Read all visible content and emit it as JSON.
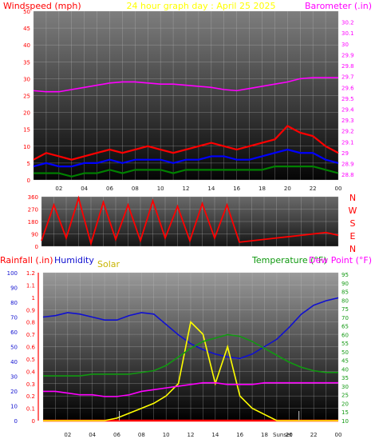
{
  "colors": {
    "wind": "#ff0000",
    "gust": "#ff0000",
    "windAvg": "#0000ff",
    "windLow": "#008000",
    "baro": "#ff00ff",
    "title": "#ffff00",
    "rain": "#ff0000",
    "humidity": "#1010d0",
    "solar": "#ffff00",
    "temp": "#119911",
    "dew": "#ff00ff",
    "dir": "#ff0000"
  },
  "header": {
    "windspeed": "Windspeed (mph)",
    "title": "24 hour graph day : April 25 2025",
    "barometer": "Barometer (.in)",
    "rainfall": "Rainfall (.in)",
    "humidity": "Humidity",
    "solar": "Solar",
    "temperature": "Temperature (°F)",
    "dewpoint": "Dew Point (°F)",
    "sunset": "Sunset"
  },
  "chart_data": [
    {
      "type": "line",
      "name": "wind",
      "x_ticks": [
        "02",
        "04",
        "06",
        "08",
        "10",
        "12",
        "14",
        "16",
        "18",
        "20",
        "22",
        "00"
      ],
      "y_left_ticks": [
        "0",
        "5",
        "10",
        "15",
        "20",
        "25",
        "30",
        "35",
        "40",
        "45",
        "50"
      ],
      "ylim_left": [
        0,
        50
      ],
      "y_right_ticks": [
        "28.8",
        "28.9",
        "29",
        "29.1",
        "29.2",
        "29.3",
        "29.4",
        "29.5",
        "29.6",
        "29.7",
        "29.8",
        "29.9",
        "30",
        "30.1",
        "30.2"
      ],
      "ylim_right": [
        28.75,
        30.3
      ],
      "x": [
        0,
        1,
        2,
        3,
        4,
        5,
        6,
        7,
        8,
        9,
        10,
        11,
        12,
        13,
        14,
        15,
        16,
        17,
        18,
        19,
        20,
        21,
        22,
        23,
        24
      ],
      "series": [
        {
          "id": "gust",
          "values": [
            6,
            8,
            7,
            6,
            7,
            8,
            9,
            8,
            9,
            10,
            9,
            8,
            9,
            10,
            11,
            10,
            9,
            10,
            11,
            12,
            16,
            14,
            13,
            10,
            8
          ]
        },
        {
          "id": "avg",
          "values": [
            4,
            5,
            4,
            4,
            5,
            5,
            6,
            5,
            6,
            6,
            6,
            5,
            6,
            6,
            7,
            7,
            6,
            6,
            7,
            8,
            9,
            8,
            8,
            6,
            5
          ]
        },
        {
          "id": "low",
          "values": [
            2,
            2,
            2,
            1,
            2,
            2,
            3,
            2,
            3,
            3,
            3,
            2,
            3,
            3,
            3,
            3,
            3,
            3,
            3,
            4,
            4,
            4,
            4,
            3,
            2
          ]
        },
        {
          "id": "baro",
          "values": [
            29.57,
            29.56,
            29.56,
            29.58,
            29.6,
            29.62,
            29.64,
            29.65,
            29.65,
            29.64,
            29.63,
            29.63,
            29.62,
            29.61,
            29.6,
            29.58,
            29.57,
            29.59,
            29.61,
            29.63,
            29.65,
            29.68,
            29.69,
            29.69,
            29.69
          ]
        }
      ]
    },
    {
      "type": "line",
      "name": "direction",
      "y_ticks": [
        "0",
        "90",
        "180",
        "270",
        "360"
      ],
      "ylim": [
        0,
        360
      ],
      "compass": [
        "N",
        "W",
        "S",
        "E",
        "N"
      ],
      "x": [
        0,
        1,
        2,
        3,
        4,
        5,
        6,
        7,
        8,
        9,
        10,
        11,
        12,
        13,
        14,
        15,
        16,
        17,
        18,
        19,
        20,
        21,
        22,
        23,
        24
      ],
      "values": [
        40,
        300,
        60,
        350,
        20,
        320,
        50,
        300,
        40,
        330,
        60,
        290,
        40,
        310,
        60,
        300,
        30,
        40,
        50,
        60,
        70,
        80,
        90,
        100,
        80
      ]
    },
    {
      "type": "line",
      "name": "rain-humidity-solar-temp",
      "y_rain_ticks": [
        "0",
        "0.1",
        "0.2",
        "0.3",
        "0.4",
        "0.5",
        "0.6",
        "0.7",
        "0.8",
        "0.9",
        "1",
        "1.1",
        "1.2"
      ],
      "ylim_rain": [
        0,
        1.2
      ],
      "y_humidity_ticks": [
        "0",
        "10",
        "20",
        "30",
        "40",
        "50",
        "60",
        "70",
        "80",
        "90",
        "100"
      ],
      "ylim_humidity": [
        0,
        100
      ],
      "y_temp_ticks": [
        "10",
        "15",
        "20",
        "25",
        "30",
        "35",
        "40",
        "45",
        "50",
        "55",
        "60",
        "65",
        "70",
        "75",
        "80",
        "85",
        "90",
        "95"
      ],
      "ylim_temp": [
        10,
        96
      ],
      "x": [
        0,
        1,
        2,
        3,
        4,
        5,
        6,
        7,
        8,
        9,
        10,
        11,
        12,
        13,
        14,
        15,
        16,
        17,
        18,
        19,
        20,
        21,
        22,
        23,
        24
      ],
      "series": [
        {
          "id": "rain",
          "values": [
            0,
            0,
            0,
            0,
            0,
            0,
            0,
            0,
            0,
            0,
            0,
            0,
            0,
            0,
            0,
            0,
            0,
            0,
            0,
            0,
            0,
            0,
            0,
            0,
            0
          ]
        },
        {
          "id": "humidity",
          "values": [
            70,
            71,
            73,
            72,
            70,
            68,
            68,
            71,
            73,
            72,
            65,
            58,
            52,
            48,
            45,
            43,
            42,
            45,
            50,
            55,
            63,
            72,
            78,
            81,
            83
          ]
        },
        {
          "id": "solar",
          "values": [
            0,
            0,
            0,
            0,
            0,
            0,
            0.02,
            0.06,
            0.1,
            0.14,
            0.2,
            0.3,
            0.8,
            0.7,
            0.3,
            0.6,
            0.2,
            0.1,
            0.05,
            0,
            0,
            0,
            0,
            0,
            0
          ]
        },
        {
          "id": "temp",
          "values": [
            36,
            36,
            36,
            36,
            37,
            37,
            37,
            37,
            38,
            39,
            42,
            47,
            52,
            56,
            58,
            60,
            59,
            56,
            52,
            48,
            44,
            41,
            39,
            38,
            38
          ]
        },
        {
          "id": "dew",
          "values": [
            27,
            27,
            26,
            25,
            25,
            24,
            24,
            25,
            27,
            28,
            29,
            30,
            31,
            32,
            32,
            31,
            31,
            31,
            32,
            32,
            32,
            32,
            32,
            32,
            32
          ]
        }
      ]
    }
  ]
}
